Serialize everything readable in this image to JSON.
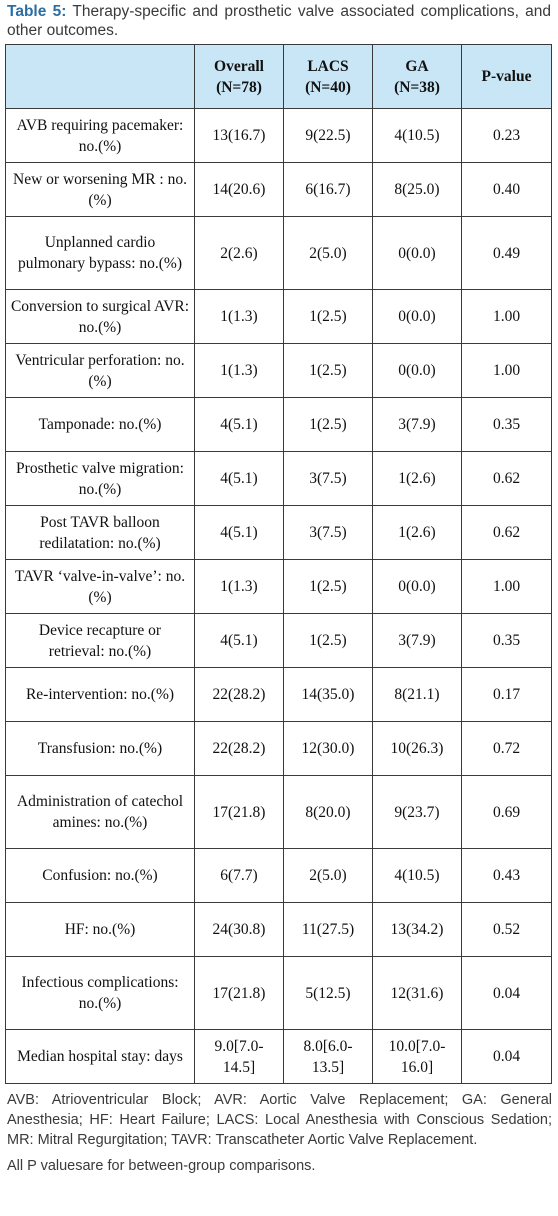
{
  "caption": {
    "label": "Table 5:",
    "text": "Therapy-specific and prosthetic valve associated complications, and other outcomes."
  },
  "columns": [
    {
      "name": "",
      "sub": ""
    },
    {
      "name": "Overall",
      "sub": "(N=78)"
    },
    {
      "name": "LACS",
      "sub": "(N=40)"
    },
    {
      "name": "GA",
      "sub": "(N=38)"
    },
    {
      "name": "P-value",
      "sub": ""
    }
  ],
  "rows": [
    {
      "label": "AVB requiring pacemaker: no.(%)",
      "overall": "13(16.7)",
      "lacs": "9(22.5)",
      "ga": "4(10.5)",
      "p": "0.23"
    },
    {
      "label": "New or worsening MR : no.(%)",
      "overall": "14(20.6)",
      "lacs": "6(16.7)",
      "ga": "8(25.0)",
      "p": "0.40"
    },
    {
      "label": "Unplanned cardio pulmonary bypass: no.(%)",
      "overall": "2(2.6)",
      "lacs": "2(5.0)",
      "ga": "0(0.0)",
      "p": "0.49"
    },
    {
      "label": "Conversion to surgical AVR: no.(%)",
      "overall": "1(1.3)",
      "lacs": "1(2.5)",
      "ga": "0(0.0)",
      "p": "1.00"
    },
    {
      "label": "Ventricular perforation: no.(%)",
      "overall": "1(1.3)",
      "lacs": "1(2.5)",
      "ga": "0(0.0)",
      "p": "1.00"
    },
    {
      "label": "Tamponade: no.(%)",
      "overall": "4(5.1)",
      "lacs": "1(2.5)",
      "ga": "3(7.9)",
      "p": "0.35"
    },
    {
      "label": "Prosthetic valve migration: no.(%)",
      "overall": "4(5.1)",
      "lacs": "3(7.5)",
      "ga": "1(2.6)",
      "p": "0.62"
    },
    {
      "label": "Post TAVR balloon redilatation: no.(%)",
      "overall": "4(5.1)",
      "lacs": "3(7.5)",
      "ga": "1(2.6)",
      "p": "0.62"
    },
    {
      "label": "TAVR ‘valve-in-valve’: no.(%)",
      "overall": "1(1.3)",
      "lacs": "1(2.5)",
      "ga": "0(0.0)",
      "p": "1.00"
    },
    {
      "label": "Device recapture or retrieval: no.(%)",
      "overall": "4(5.1)",
      "lacs": "1(2.5)",
      "ga": "3(7.9)",
      "p": "0.35"
    },
    {
      "label": "Re-intervention: no.(%)",
      "overall": "22(28.2)",
      "lacs": "14(35.0)",
      "ga": "8(21.1)",
      "p": "0.17"
    },
    {
      "label": "Transfusion: no.(%)",
      "overall": "22(28.2)",
      "lacs": "12(30.0)",
      "ga": "10(26.3)",
      "p": "0.72"
    },
    {
      "label": "Administration of catechol amines: no.(%)",
      "overall": "17(21.8)",
      "lacs": "8(20.0)",
      "ga": "9(23.7)",
      "p": "0.69"
    },
    {
      "label": "Confusion: no.(%)",
      "overall": "6(7.7)",
      "lacs": "2(5.0)",
      "ga": "4(10.5)",
      "p": "0.43"
    },
    {
      "label": "HF: no.(%)",
      "overall": "24(30.8)",
      "lacs": "11(27.5)",
      "ga": "13(34.2)",
      "p": "0.52"
    },
    {
      "label": "Infectious complications: no.(%)",
      "overall": "17(21.8)",
      "lacs": "5(12.5)",
      "ga": "12(31.6)",
      "p": "0.04"
    },
    {
      "label": "Median hospital stay: days",
      "overall": "9.0[7.0-14.5]",
      "lacs": "8.0[6.0-13.5]",
      "ga": "10.0[7.0-16.0]",
      "p": "0.04"
    }
  ],
  "footnotes": [
    "AVB: Atrioventricular Block; AVR: Aortic Valve Replacement; GA: General Anesthesia; HF: Heart Failure; LACS: Local Anesthesia with Conscious Sedation; MR: Mitral Regurgitation; TAVR: Transcatheter Aortic Valve Replacement.",
    "All P valuesare for between-group comparisons."
  ]
}
